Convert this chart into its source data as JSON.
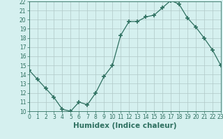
{
  "x": [
    0,
    1,
    2,
    3,
    4,
    5,
    6,
    7,
    8,
    9,
    10,
    11,
    12,
    13,
    14,
    15,
    16,
    17,
    18,
    19,
    20,
    21,
    22,
    23
  ],
  "y": [
    14.5,
    13.5,
    12.5,
    11.5,
    10.2,
    10.0,
    11.0,
    10.7,
    12.0,
    13.8,
    15.0,
    18.3,
    19.8,
    19.8,
    20.3,
    20.5,
    21.3,
    22.1,
    21.7,
    20.2,
    19.2,
    18.0,
    16.7,
    15.0
  ],
  "line_color": "#2e7060",
  "marker": "+",
  "marker_size": 4,
  "bg_color": "#d5f0ef",
  "grid_color": "#b0c8c8",
  "xlabel": "Humidex (Indice chaleur)",
  "ylabel": "",
  "title": "",
  "xlim": [
    0,
    23
  ],
  "ylim": [
    10,
    22
  ],
  "yticks": [
    10,
    11,
    12,
    13,
    14,
    15,
    16,
    17,
    18,
    19,
    20,
    21,
    22
  ],
  "xticks": [
    0,
    1,
    2,
    3,
    4,
    5,
    6,
    7,
    8,
    9,
    10,
    11,
    12,
    13,
    14,
    15,
    16,
    17,
    18,
    19,
    20,
    21,
    22,
    23
  ],
  "font_color": "#2e7060",
  "tick_fontsize": 5.5,
  "xlabel_fontsize": 7.5,
  "linewidth": 0.9,
  "marker_thickness": 1.2
}
